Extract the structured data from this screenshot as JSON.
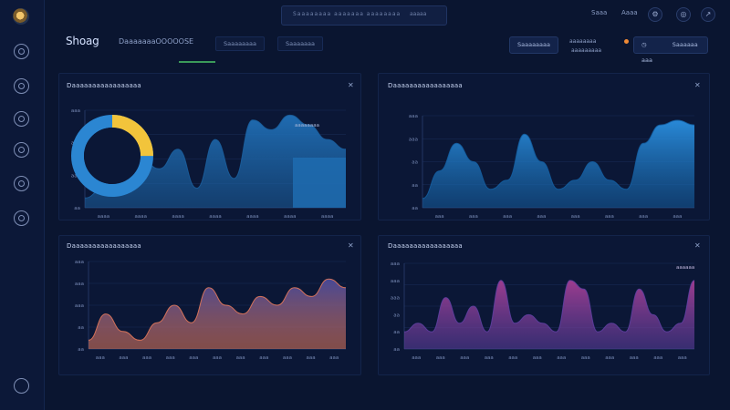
{
  "app": {
    "brand": "Shoag",
    "brand_subtitle": "DaaaaaaaOOOOOSE",
    "search_text": "Saaaaaaaa aaaaaaa aaaaaaaa",
    "search_secondary": "aaaaa",
    "top_links": [
      "Saaa",
      "Aaaa"
    ],
    "tabs": [
      "Saaaaaaaa",
      "Saaaaaaa"
    ],
    "header_pills": [
      "Saaaaaaaa",
      "Saaaaaa aaa"
    ],
    "user_label": "aaaaaaaa",
    "user_sub": "aaaaaaaaa",
    "icons": [
      "settings-icon",
      "globe-icon",
      "share-icon",
      "clock-icon",
      "search-icon"
    ]
  },
  "sidebar": {
    "items": [
      {
        "name": "dashboard-icon"
      },
      {
        "name": "analytics-icon"
      },
      {
        "name": "settings-icon"
      },
      {
        "name": "users-icon"
      },
      {
        "name": "reports-icon"
      },
      {
        "name": "monitor-icon"
      }
    ]
  },
  "panels": {
    "p1": {
      "title": "Daaaaaaaaaaaaaaaaa",
      "ticks": [
        "aaaa",
        "aaaa",
        "aaaa",
        "aaaa",
        "aaaa",
        "aaaa",
        "aaaa"
      ],
      "yticks": [
        "aaa",
        "aaa",
        "aaa",
        "aa"
      ],
      "annotation": "aaaaaaaa"
    },
    "p2": {
      "title": "Daaaaaaaaaaaaaaaaa",
      "ticks": [
        "aaa",
        "aaa",
        "aaa",
        "aaa",
        "aaa",
        "aaa",
        "aaa",
        "aaa"
      ],
      "yticks": [
        "aaa",
        "aaa",
        "aa",
        "aa",
        "aa"
      ]
    },
    "p3": {
      "title": "Daaaaaaaaaaaaaaaaa",
      "ticks": [
        "aaa",
        "aaa",
        "aaa",
        "aaa",
        "aaa",
        "aaa",
        "aaa",
        "aaa",
        "aaa",
        "aaa",
        "aaa"
      ],
      "yticks": [
        "aaa",
        "aaa",
        "aaa",
        "aa",
        "aa"
      ]
    },
    "p4": {
      "title": "Daaaaaaaaaaaaaaaaa",
      "ticks": [
        "aaa",
        "aaa",
        "aaa",
        "aaa",
        "aaa",
        "aaa",
        "aaa",
        "aaa",
        "aaa",
        "aaa",
        "aaa",
        "aaa"
      ],
      "yticks": [
        "aaa",
        "aaa",
        "aaa",
        "aa",
        "aa",
        "aa"
      ],
      "annotation": "aaaaaa"
    }
  },
  "chart_data": [
    {
      "type": "area",
      "values": [
        1,
        2,
        3,
        5,
        4,
        6,
        2,
        7,
        3,
        9,
        8,
        9.5,
        8.5,
        7,
        6
      ],
      "donut": [
        0.25,
        0.75
      ],
      "colors": [
        "#f2c43b",
        "#2b86d2"
      ]
    },
    {
      "type": "area",
      "values": [
        1,
        4,
        7,
        5,
        2,
        3,
        8,
        5,
        2,
        3,
        5,
        3,
        2,
        7,
        9,
        9.5,
        9
      ],
      "colors": [
        "#1f7fd0"
      ]
    },
    {
      "type": "area",
      "values": [
        1,
        4,
        2,
        1,
        3,
        5,
        3,
        7,
        5,
        4,
        6,
        5,
        7,
        6,
        8,
        7
      ],
      "colors": [
        "#5a4ea8",
        "#e2785a"
      ]
    },
    {
      "type": "area",
      "values": [
        2,
        3,
        2,
        6,
        3,
        5,
        2,
        8,
        3,
        4,
        3,
        2,
        8,
        7,
        2,
        3,
        2,
        7,
        4,
        2,
        3,
        8
      ],
      "colors": [
        "#9b3b8f",
        "#6c3fa0"
      ]
    }
  ]
}
